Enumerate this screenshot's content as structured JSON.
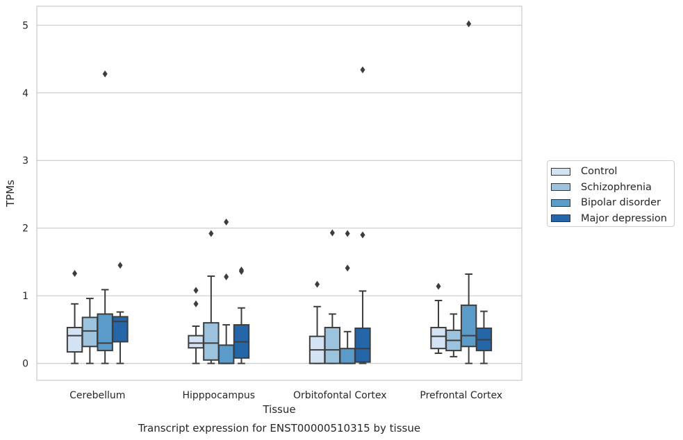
{
  "chart_data": {
    "type": "box",
    "title": "Transcript expression for ENST00000510315 by tissue",
    "xlabel": "Tissue",
    "ylabel": "TPMs",
    "ylim": [
      -0.25,
      5.28
    ],
    "yticks": [
      0,
      1,
      2,
      3,
      4,
      5
    ],
    "grid": true,
    "legend_position": "right",
    "categories": [
      "Cerebellum",
      "Hipppocampus",
      "Orbitofontal Cortex",
      "Prefrontal Cortex"
    ],
    "series": [
      {
        "name": "Control",
        "color": "#d4e3f3",
        "boxes": [
          {
            "whisker_low": 0.0,
            "q1": 0.17,
            "median": 0.41,
            "q3": 0.53,
            "whisker_high": 0.88,
            "outliers": [
              1.33
            ]
          },
          {
            "whisker_low": 0.0,
            "q1": 0.23,
            "median": 0.3,
            "q3": 0.41,
            "whisker_high": 0.55,
            "outliers": [
              0.88,
              1.08
            ]
          },
          {
            "whisker_low": 0.0,
            "q1": 0.0,
            "median": 0.2,
            "q3": 0.4,
            "whisker_high": 0.84,
            "outliers": [
              1.17
            ]
          },
          {
            "whisker_low": 0.15,
            "q1": 0.22,
            "median": 0.4,
            "q3": 0.53,
            "whisker_high": 0.93,
            "outliers": [
              1.14
            ]
          }
        ]
      },
      {
        "name": "Schizophrenia",
        "color": "#9cc3de",
        "boxes": [
          {
            "whisker_low": 0.0,
            "q1": 0.25,
            "median": 0.48,
            "q3": 0.68,
            "whisker_high": 0.96,
            "outliers": []
          },
          {
            "whisker_low": 0.0,
            "q1": 0.05,
            "median": 0.3,
            "q3": 0.6,
            "whisker_high": 1.29,
            "outliers": [
              1.92
            ]
          },
          {
            "whisker_low": 0.0,
            "q1": 0.0,
            "median": 0.2,
            "q3": 0.53,
            "whisker_high": 0.73,
            "outliers": [
              1.93
            ]
          },
          {
            "whisker_low": 0.1,
            "q1": 0.19,
            "median": 0.34,
            "q3": 0.49,
            "whisker_high": 0.73,
            "outliers": []
          }
        ]
      },
      {
        "name": "Bipolar disorder",
        "color": "#5b9bc9",
        "boxes": [
          {
            "whisker_low": 0.0,
            "q1": 0.19,
            "median": 0.3,
            "q3": 0.73,
            "whisker_high": 1.09,
            "outliers": [
              4.28
            ]
          },
          {
            "whisker_low": 0.0,
            "q1": 0.0,
            "median": 0.0,
            "q3": 0.27,
            "whisker_high": 0.57,
            "outliers": [
              1.28,
              2.09
            ]
          },
          {
            "whisker_low": 0.0,
            "q1": 0.0,
            "median": 0.0,
            "q3": 0.22,
            "whisker_high": 0.47,
            "outliers": [
              1.41,
              1.92
            ]
          },
          {
            "whisker_low": 0.0,
            "q1": 0.25,
            "median": 0.41,
            "q3": 0.86,
            "whisker_high": 1.32,
            "outliers": [
              5.02
            ]
          }
        ]
      },
      {
        "name": "Major depression",
        "color": "#2566a8",
        "boxes": [
          {
            "whisker_low": 0.0,
            "q1": 0.32,
            "median": 0.62,
            "q3": 0.69,
            "whisker_high": 0.76,
            "outliers": [
              1.45
            ]
          },
          {
            "whisker_low": 0.0,
            "q1": 0.08,
            "median": 0.32,
            "q3": 0.57,
            "whisker_high": 0.82,
            "outliers": [
              1.36,
              1.38
            ]
          },
          {
            "whisker_low": 0.0,
            "q1": 0.02,
            "median": 0.22,
            "q3": 0.52,
            "whisker_high": 1.07,
            "outliers": [
              1.9,
              4.34
            ]
          },
          {
            "whisker_low": 0.0,
            "q1": 0.19,
            "median": 0.35,
            "q3": 0.52,
            "whisker_high": 0.77,
            "outliers": []
          }
        ]
      }
    ]
  }
}
